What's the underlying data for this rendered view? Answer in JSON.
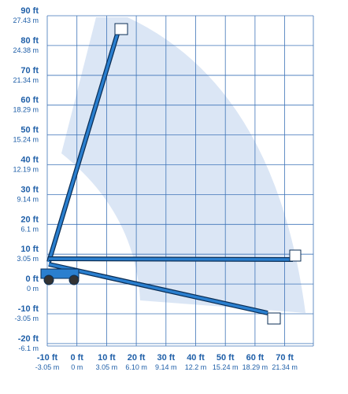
{
  "y_axis": [
    {
      "ft": "90 ft",
      "m": "27.43 m"
    },
    {
      "ft": "80 ft",
      "m": "24.38 m"
    },
    {
      "ft": "70 ft",
      "m": "21.34 m"
    },
    {
      "ft": "60 ft",
      "m": "18.29 m"
    },
    {
      "ft": "50 ft",
      "m": "15.24 m"
    },
    {
      "ft": "40 ft",
      "m": "12.19 m"
    },
    {
      "ft": "30 ft",
      "m": "9.14 m"
    },
    {
      "ft": "20 ft",
      "m": "6.1 m"
    },
    {
      "ft": "10 ft",
      "m": "3.05 m"
    },
    {
      "ft": "0 ft",
      "m": "0 m"
    },
    {
      "ft": "-10 ft",
      "m": "-3.05 m"
    },
    {
      "ft": "-20 ft",
      "m": "-6.1 m"
    }
  ],
  "x_axis": [
    {
      "ft": "-10 ft",
      "m": "-3.05 m"
    },
    {
      "ft": "0 ft",
      "m": "0 m"
    },
    {
      "ft": "10 ft",
      "m": "3.05 m"
    },
    {
      "ft": "20 ft",
      "m": "6.10 m"
    },
    {
      "ft": "30 ft",
      "m": "9.14 m"
    },
    {
      "ft": "40 ft",
      "m": "12.2 m"
    },
    {
      "ft": "50 ft",
      "m": "15.24 m"
    },
    {
      "ft": "60 ft",
      "m": "18.29 m"
    },
    {
      "ft": "70 ft",
      "m": "21.34 m"
    }
  ]
}
